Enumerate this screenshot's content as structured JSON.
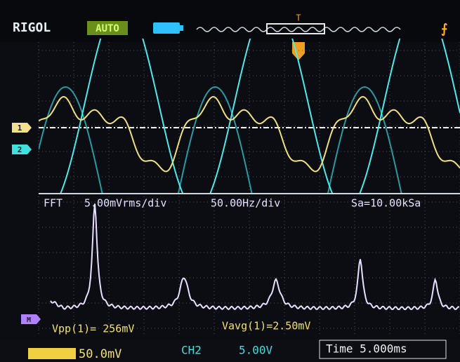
{
  "header": {
    "brand": "RIGOL",
    "mode": "AUTO",
    "trigger_marker": "T"
  },
  "channels": {
    "ch1_marker": "1",
    "ch2_marker": "2",
    "math_marker": "M"
  },
  "fft": {
    "label": "FFT",
    "scale": "5.00mVrms/div",
    "freq": "50.00Hz/div",
    "sample": "Sa=10.00kSa"
  },
  "measurements": [
    "Vpp(1)= 256mV",
    "Vavg(1)=2.50mV"
  ],
  "status": {
    "ch1_scale": "50.0mV",
    "ch2_label": "CH2",
    "ch2_scale": "5.00V",
    "time": "Time 5.000ms"
  }
}
